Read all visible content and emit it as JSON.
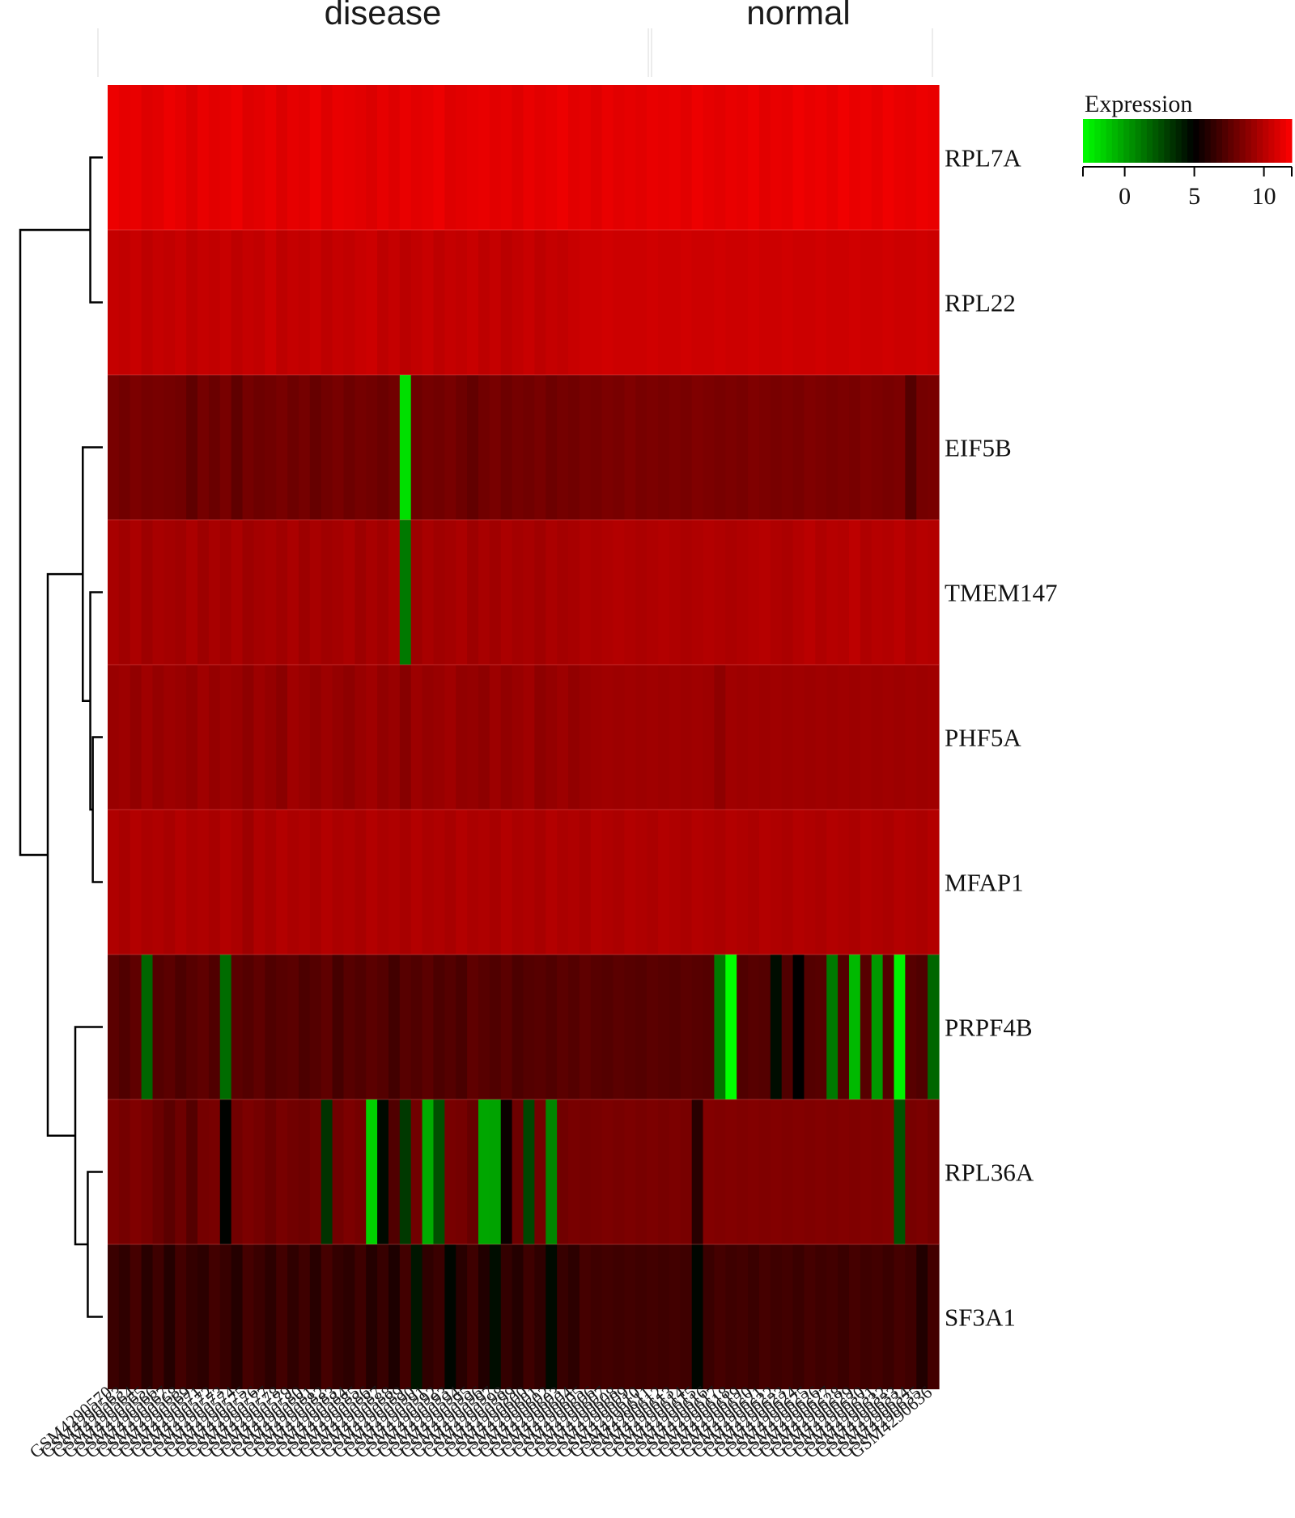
{
  "chart_data": {
    "type": "heatmap",
    "title": "",
    "column_groups": [
      {
        "label": "disease",
        "from": 0,
        "to": 48
      },
      {
        "label": "normal",
        "from": 49,
        "to": 73
      }
    ],
    "rows": [
      "RPL7A",
      "RPL22",
      "EIF5B",
      "TMEM147",
      "PHF5A",
      "MFAP1",
      "PRPF4B",
      "RPL36A",
      "SF3A1"
    ],
    "n_columns": 74,
    "values": [
      [
        11.5,
        11.3,
        11.4,
        11.1,
        11.2,
        11.5,
        11.3,
        11.0,
        11.4,
        11.2,
        11.3,
        11.5,
        11.1,
        11.2,
        11.4,
        11.0,
        11.3,
        11.2,
        11.5,
        11.1,
        11.4,
        11.3,
        11.2,
        11.0,
        11.3,
        11.1,
        11.4,
        11.2,
        11.3,
        11.5,
        11.1,
        11.2,
        11.3,
        11.4,
        11.2,
        11.3,
        11.1,
        11.4,
        11.2,
        11.3,
        11.5,
        11.2,
        11.3,
        11.1,
        11.4,
        11.2,
        11.3,
        11.2,
        11.4,
        11.3,
        11.4,
        11.2,
        11.5,
        11.3,
        11.2,
        11.4,
        11.3,
        11.5,
        11.2,
        11.4,
        11.3,
        11.6,
        11.4,
        11.5,
        11.3,
        11.6,
        11.4,
        11.5,
        11.3,
        11.6,
        11.4,
        11.3,
        11.5,
        11.4
      ],
      [
        10.4,
        10.3,
        10.5,
        10.2,
        10.4,
        10.3,
        10.5,
        10.2,
        10.4,
        10.3,
        10.5,
        10.2,
        10.4,
        10.3,
        10.6,
        10.2,
        10.4,
        10.3,
        10.5,
        10.2,
        10.4,
        10.3,
        10.5,
        10.6,
        10.2,
        10.4,
        10.1,
        10.3,
        10.5,
        10.2,
        10.4,
        10.3,
        10.5,
        10.2,
        10.4,
        10.1,
        10.3,
        10.5,
        10.2,
        10.4,
        10.3,
        10.5,
        10.6,
        10.6,
        10.7,
        10.6,
        10.6,
        10.6,
        10.7,
        10.6,
        10.6,
        10.7,
        10.6,
        10.6,
        10.7,
        10.6,
        10.6,
        10.7,
        10.6,
        10.6,
        10.7,
        10.6,
        10.6,
        10.7,
        10.6,
        10.6,
        10.7,
        10.6,
        10.6,
        10.7,
        10.6,
        10.6,
        10.7,
        10.6
      ],
      [
        8.3,
        8.1,
        8.4,
        8.2,
        8.3,
        8.2,
        8.1,
        7.6,
        8.2,
        7.9,
        8.3,
        7.6,
        8.2,
        8.0,
        8.1,
        8.3,
        8.0,
        8.2,
        7.8,
        8.1,
        8.3,
        8.0,
        8.2,
        8.1,
        7.9,
        8.1,
        -2.0,
        8.0,
        8.2,
        8.1,
        8.3,
        8.0,
        7.7,
        8.1,
        8.3,
        8.0,
        8.2,
        8.1,
        8.3,
        8.0,
        8.2,
        8.1,
        8.3,
        8.2,
        8.4,
        8.3,
        8.5,
        8.3,
        8.4,
        8.3,
        8.4,
        8.3,
        8.5,
        8.4,
        8.3,
        8.4,
        8.3,
        8.5,
        8.4,
        8.3,
        8.4,
        8.3,
        8.5,
        8.4,
        8.3,
        8.4,
        8.3,
        8.5,
        8.4,
        8.3,
        8.4,
        7.3,
        8.2,
        8.3
      ],
      [
        9.6,
        9.4,
        9.7,
        9.3,
        9.6,
        9.5,
        9.4,
        9.7,
        9.3,
        9.6,
        9.4,
        9.7,
        9.3,
        9.5,
        9.6,
        9.4,
        9.7,
        9.3,
        9.6,
        9.4,
        9.5,
        9.7,
        9.3,
        9.6,
        9.4,
        9.7,
        1.2,
        9.3,
        9.6,
        9.4,
        9.5,
        9.7,
        9.3,
        9.6,
        9.4,
        9.7,
        9.5,
        9.6,
        9.4,
        9.7,
        9.5,
        9.6,
        9.8,
        9.7,
        9.8,
        9.9,
        9.8,
        9.7,
        9.8,
        9.9,
        9.8,
        9.7,
        9.8,
        9.9,
        9.8,
        9.7,
        9.8,
        9.9,
        10.0,
        9.8,
        9.7,
        9.9,
        10.1,
        9.8,
        10.0,
        9.9,
        10.2,
        9.8,
        10.0,
        9.9,
        10.1,
        9.8,
        10.0,
        9.9
      ],
      [
        9.2,
        9.3,
        9.0,
        9.4,
        9.1,
        9.3,
        9.2,
        9.0,
        9.4,
        9.1,
        9.3,
        9.2,
        8.9,
        9.3,
        9.1,
        8.8,
        9.4,
        9.2,
        9.0,
        9.3,
        9.1,
        8.9,
        9.2,
        9.4,
        9.0,
        9.2,
        8.7,
        9.3,
        9.1,
        9.2,
        9.4,
        9.0,
        9.1,
        8.9,
        9.3,
        9.0,
        9.2,
        9.4,
        8.9,
        9.1,
        9.3,
        9.0,
        9.2,
        9.3,
        9.4,
        9.3,
        9.4,
        9.3,
        9.4,
        9.3,
        9.4,
        9.3,
        9.4,
        9.3,
        8.9,
        9.4,
        9.3,
        9.4,
        9.3,
        9.4,
        9.3,
        9.4,
        9.3,
        9.4,
        9.3,
        9.4,
        9.3,
        9.4,
        9.3,
        9.4,
        9.3,
        9.4,
        9.3,
        9.4
      ],
      [
        9.8,
        9.6,
        9.9,
        9.7,
        9.8,
        9.6,
        9.9,
        9.7,
        9.8,
        9.6,
        9.9,
        9.7,
        9.3,
        9.8,
        9.6,
        9.9,
        9.7,
        9.8,
        9.6,
        9.9,
        9.7,
        9.8,
        9.6,
        9.9,
        9.7,
        9.8,
        9.6,
        9.9,
        9.7,
        9.8,
        9.6,
        9.9,
        9.7,
        9.8,
        9.6,
        9.9,
        9.7,
        9.8,
        9.6,
        9.9,
        9.7,
        9.8,
        9.6,
        9.9,
        9.8,
        9.7,
        9.9,
        9.8,
        9.7,
        9.9,
        9.8,
        9.7,
        9.9,
        9.8,
        9.7,
        9.9,
        9.8,
        9.7,
        9.9,
        9.8,
        9.7,
        9.9,
        9.8,
        9.7,
        9.9,
        9.8,
        9.7,
        9.9,
        9.8,
        9.7,
        9.9,
        9.8,
        9.7,
        9.9
      ],
      [
        7.5,
        7.2,
        7.6,
        1.8,
        7.3,
        7.5,
        7.1,
        7.4,
        7.6,
        7.2,
        1.6,
        7.5,
        7.3,
        7.6,
        7.2,
        7.4,
        7.5,
        7.1,
        7.3,
        7.6,
        6.9,
        7.4,
        7.2,
        7.5,
        7.3,
        6.8,
        7.4,
        7.2,
        7.5,
        7.1,
        7.3,
        7.0,
        7.6,
        7.4,
        7.2,
        7.5,
        7.1,
        7.3,
        7.4,
        7.2,
        7.5,
        7.3,
        7.6,
        7.4,
        7.3,
        7.5,
        7.4,
        7.3,
        7.5,
        7.4,
        7.3,
        7.5,
        7.4,
        7.3,
        1.2,
        -3.2,
        7.2,
        7.4,
        7.3,
        4.6,
        7.2,
        5.0,
        7.3,
        7.4,
        1.2,
        7.3,
        -0.8,
        7.4,
        0.2,
        7.3,
        -2.6,
        7.4,
        7.2,
        1.8
      ],
      [
        8.4,
        8.2,
        8.5,
        8.3,
        7.9,
        7.5,
        8.0,
        7.3,
        8.2,
        8.3,
        4.9,
        8.1,
        8.4,
        8.2,
        7.9,
        8.3,
        8.1,
        8.0,
        8.2,
        3.4,
        8.1,
        8.4,
        8.2,
        -1.6,
        4.7,
        7.2,
        3.2,
        8.1,
        -0.4,
        2.5,
        8.3,
        8.2,
        7.8,
        -0.2,
        -0.1,
        5.3,
        8.0,
        2.8,
        8.2,
        0.8,
        8.1,
        8.3,
        8.2,
        8.3,
        8.4,
        8.3,
        8.4,
        8.3,
        8.4,
        8.3,
        8.4,
        8.3,
        6.1,
        8.6,
        8.5,
        8.6,
        8.5,
        8.6,
        8.5,
        8.6,
        8.5,
        8.6,
        8.5,
        8.6,
        8.5,
        8.6,
        8.5,
        8.6,
        8.5,
        8.6,
        2.4,
        8.3,
        8.4,
        8.2
      ],
      [
        6.6,
        6.3,
        6.9,
        6.1,
        6.7,
        6.0,
        6.8,
        6.4,
        6.2,
        6.8,
        6.5,
        6.0,
        6.9,
        6.6,
        6.2,
        6.8,
        6.3,
        6.7,
        6.1,
        6.9,
        6.4,
        6.2,
        6.7,
        6.0,
        6.5,
        5.8,
        6.8,
        4.3,
        6.3,
        6.6,
        4.8,
        6.1,
        6.7,
        5.9,
        4.6,
        6.4,
        6.0,
        6.7,
        6.3,
        4.7,
        6.5,
        6.2,
        6.9,
        6.7,
        6.8,
        6.7,
        6.8,
        6.7,
        6.8,
        6.7,
        6.8,
        6.7,
        4.8,
        6.6,
        6.9,
        6.7,
        6.8,
        6.6,
        6.9,
        6.7,
        6.8,
        6.6,
        6.9,
        6.7,
        6.8,
        6.6,
        6.9,
        6.7,
        6.8,
        6.6,
        6.9,
        6.7,
        5.9,
        6.8
      ]
    ],
    "column_labels": [
      "GSM4290570",
      "GSM4290563",
      "GSM4290564",
      "GSM4290565",
      "GSM4290566",
      "GSM4290567",
      "GSM4290568",
      "GSM4290569",
      "GSM4290571",
      "GSM4290572",
      "GSM4290573",
      "GSM4290574",
      "GSM4290575",
      "GSM4290576",
      "GSM4290577",
      "GSM4290578",
      "GSM4290579",
      "GSM4290580",
      "GSM4290581",
      "GSM4290582",
      "GSM4290583",
      "GSM4290584",
      "GSM4290585",
      "GSM4290586",
      "GSM4290587",
      "GSM4290588",
      "GSM4290589",
      "GSM4290590",
      "GSM4290591",
      "GSM4290592",
      "GSM4290593",
      "GSM4290594",
      "GSM4290595",
      "GSM4290596",
      "GSM4290597",
      "GSM4290598",
      "GSM4290599",
      "GSM4290600",
      "GSM4290601",
      "GSM4290602",
      "GSM4290603",
      "GSM4290604",
      "GSM4290605",
      "GSM4290606",
      "GSM4290607",
      "GSM4290608",
      "GSM4290609",
      "GSM4290610",
      "GSM4290611",
      "GSM4290612",
      "GSM4290613",
      "GSM4290614",
      "GSM4290615",
      "GSM4290616",
      "GSM4290617",
      "GSM4290618",
      "GSM4290619",
      "GSM4290620",
      "GSM4290621",
      "GSM4290622",
      "GSM4290623",
      "GSM4290624",
      "GSM4290625",
      "GSM4290626",
      "GSM4290627",
      "GSM4290628",
      "GSM4290629",
      "GSM4290630",
      "GSM4290631",
      "GSM4290632",
      "GSM4290633",
      "GSM4290634",
      "GSM4290635",
      "GSM4290636"
    ],
    "legend": {
      "title": "Expression",
      "ticks": [
        0,
        5,
        10
      ],
      "range": [
        -3,
        12
      ],
      "colors": {
        "low": "#00ff00",
        "mid": "#000000",
        "high": "#ff0000"
      }
    },
    "row_dendrogram": {
      "merges": [
        {
          "a": "r0",
          "b": "r1",
          "height": 0.05
        },
        {
          "a": "r4",
          "b": "r5",
          "height": 0.04
        },
        {
          "a": "r3",
          "b": "n1",
          "height": 0.05
        },
        {
          "a": "r2",
          "b": "n2",
          "height": 0.08
        },
        {
          "a": "r7",
          "b": "r8",
          "height": 0.06
        },
        {
          "a": "r6",
          "b": "n4",
          "height": 0.11
        },
        {
          "a": "n3",
          "b": "n5",
          "height": 0.22
        },
        {
          "a": "n0",
          "b": "n6",
          "height": 0.33
        }
      ]
    }
  }
}
